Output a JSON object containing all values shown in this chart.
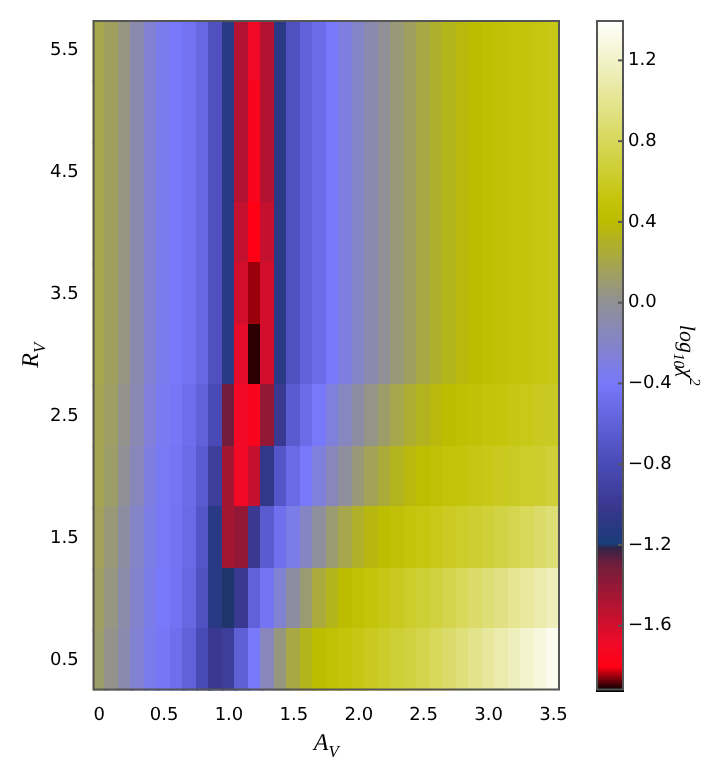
{
  "chart_data": {
    "type": "heatmap",
    "xlabel": "A$_{V}$",
    "ylabel": "R$_{V}$",
    "clabel": "log$_{10}$χ$^{2}$",
    "x": [
      0,
      0.1,
      0.2,
      0.3,
      0.4,
      0.5,
      0.6,
      0.7,
      0.8,
      0.9,
      1.0,
      1.1,
      1.2,
      1.3,
      1.4,
      1.5,
      1.6,
      1.7,
      1.8,
      1.9,
      2.0,
      2.1,
      2.2,
      2.3,
      2.4,
      2.5,
      2.6,
      2.7,
      2.8,
      2.9,
      3.0,
      3.1,
      3.2,
      3.3,
      3.4,
      3.5
    ],
    "y": [
      5.5,
      5.0,
      4.5,
      4.0,
      3.5,
      3.0,
      2.5,
      2.0,
      1.5,
      1.0,
      0.5
    ],
    "cells": [
      [
        0.2,
        0.15,
        0.05,
        -0.1,
        -0.25,
        -0.35,
        -0.4,
        -0.45,
        -0.55,
        -0.75,
        -1.1,
        -1.5,
        -1.7,
        -1.5,
        -1.1,
        -0.75,
        -0.6,
        -0.5,
        -0.4,
        -0.3,
        -0.2,
        -0.1,
        0.0,
        0.08,
        0.15,
        0.22,
        0.28,
        0.33,
        0.37,
        0.41,
        0.44,
        0.47,
        0.49,
        0.51,
        0.53,
        0.55
      ],
      [
        0.2,
        0.15,
        0.05,
        -0.1,
        -0.25,
        -0.35,
        -0.4,
        -0.45,
        -0.55,
        -0.75,
        -1.1,
        -1.5,
        -1.75,
        -1.5,
        -1.1,
        -0.75,
        -0.6,
        -0.5,
        -0.4,
        -0.3,
        -0.2,
        -0.1,
        0.0,
        0.08,
        0.15,
        0.22,
        0.28,
        0.33,
        0.37,
        0.41,
        0.44,
        0.47,
        0.49,
        0.51,
        0.53,
        0.55
      ],
      [
        0.2,
        0.15,
        0.05,
        -0.1,
        -0.25,
        -0.35,
        -0.4,
        -0.45,
        -0.55,
        -0.75,
        -1.1,
        -1.5,
        -1.75,
        -1.5,
        -1.1,
        -0.75,
        -0.6,
        -0.5,
        -0.4,
        -0.3,
        -0.2,
        -0.1,
        0.0,
        0.08,
        0.15,
        0.22,
        0.28,
        0.33,
        0.37,
        0.41,
        0.44,
        0.47,
        0.49,
        0.51,
        0.53,
        0.55
      ],
      [
        0.2,
        0.15,
        0.05,
        -0.1,
        -0.25,
        -0.35,
        -0.4,
        -0.45,
        -0.55,
        -0.75,
        -1.1,
        -1.55,
        -1.8,
        -1.55,
        -1.1,
        -0.75,
        -0.6,
        -0.5,
        -0.4,
        -0.3,
        -0.2,
        -0.1,
        0.0,
        0.08,
        0.15,
        0.22,
        0.28,
        0.33,
        0.37,
        0.41,
        0.44,
        0.47,
        0.49,
        0.51,
        0.53,
        0.55
      ],
      [
        0.2,
        0.15,
        0.05,
        -0.1,
        -0.25,
        -0.35,
        -0.4,
        -0.45,
        -0.55,
        -0.75,
        -1.1,
        -1.6,
        -1.85,
        -1.6,
        -1.1,
        -0.75,
        -0.6,
        -0.5,
        -0.4,
        -0.3,
        -0.2,
        -0.1,
        0.0,
        0.08,
        0.15,
        0.22,
        0.28,
        0.33,
        0.37,
        0.41,
        0.44,
        0.47,
        0.49,
        0.51,
        0.53,
        0.55
      ],
      [
        0.2,
        0.15,
        0.05,
        -0.1,
        -0.25,
        -0.35,
        -0.4,
        -0.45,
        -0.55,
        -0.75,
        -1.1,
        -1.65,
        -1.9,
        -1.6,
        -1.1,
        -0.75,
        -0.6,
        -0.5,
        -0.4,
        -0.3,
        -0.2,
        -0.1,
        0.0,
        0.08,
        0.15,
        0.22,
        0.28,
        0.33,
        0.37,
        0.41,
        0.44,
        0.47,
        0.49,
        0.51,
        0.53,
        0.55
      ],
      [
        0.18,
        0.13,
        0.03,
        -0.12,
        -0.27,
        -0.37,
        -0.42,
        -0.48,
        -0.6,
        -0.8,
        -1.3,
        -1.7,
        -1.75,
        -1.4,
        -1.0,
        -0.65,
        -0.5,
        -0.4,
        -0.28,
        -0.17,
        -0.06,
        0.04,
        0.12,
        0.2,
        0.27,
        0.32,
        0.37,
        0.41,
        0.44,
        0.47,
        0.5,
        0.52,
        0.54,
        0.56,
        0.58,
        0.6
      ],
      [
        0.18,
        0.12,
        0.0,
        -0.15,
        -0.3,
        -0.38,
        -0.43,
        -0.5,
        -0.65,
        -0.95,
        -1.45,
        -1.7,
        -1.55,
        -1.05,
        -0.7,
        -0.52,
        -0.4,
        -0.28,
        -0.15,
        -0.03,
        0.08,
        0.17,
        0.25,
        0.32,
        0.37,
        0.42,
        0.46,
        0.49,
        0.51,
        0.54,
        0.56,
        0.58,
        0.6,
        0.62,
        0.64,
        0.67
      ],
      [
        0.16,
        0.08,
        -0.05,
        -0.2,
        -0.32,
        -0.39,
        -0.44,
        -0.52,
        -0.7,
        -1.1,
        -1.45,
        -1.4,
        -1.0,
        -0.65,
        -0.47,
        -0.33,
        -0.18,
        -0.03,
        0.1,
        0.2,
        0.29,
        0.36,
        0.42,
        0.46,
        0.5,
        0.53,
        0.56,
        0.59,
        0.62,
        0.65,
        0.68,
        0.72,
        0.76,
        0.8,
        0.85,
        0.9
      ],
      [
        0.14,
        0.05,
        -0.08,
        -0.22,
        -0.33,
        -0.4,
        -0.45,
        -0.55,
        -0.75,
        -1.1,
        -1.2,
        -1.0,
        -0.6,
        -0.43,
        -0.24,
        -0.05,
        0.1,
        0.24,
        0.33,
        0.4,
        0.45,
        0.5,
        0.54,
        0.58,
        0.62,
        0.66,
        0.7,
        0.75,
        0.8,
        0.85,
        0.9,
        0.95,
        1.0,
        1.05,
        1.1,
        1.15
      ],
      [
        0.12,
        0.03,
        -0.1,
        -0.24,
        -0.35,
        -0.42,
        -0.48,
        -0.6,
        -0.8,
        -1.0,
        -0.95,
        -0.62,
        -0.4,
        -0.15,
        0.06,
        0.22,
        0.33,
        0.4,
        0.45,
        0.5,
        0.54,
        0.58,
        0.62,
        0.66,
        0.7,
        0.75,
        0.8,
        0.86,
        0.92,
        0.98,
        1.04,
        1.1,
        1.16,
        1.22,
        1.28,
        1.34
      ]
    ],
    "xlim": [
      -0.05,
      3.55
    ],
    "ylim": [
      0.25,
      5.75
    ],
    "xticks": [
      0,
      0.5,
      {
        "value": 1,
        "label": "1.0"
      },
      1.5,
      {
        "value": 2,
        "label": "2.0"
      },
      2.5,
      {
        "value": 3,
        "label": "3.0"
      },
      3.5
    ],
    "yticks": [
      0.5,
      1.5,
      2.5,
      3.5,
      4.5,
      5.5
    ],
    "clim": [
      -1.92,
      1.4
    ],
    "cticks": [
      {
        "value": -1.6,
        "label": "−1.6"
      },
      {
        "value": -1.2,
        "label": "−1.2"
      },
      {
        "value": -0.8,
        "label": "−0.8"
      },
      {
        "value": -0.4,
        "label": "−0.4"
      },
      {
        "value": 0,
        "label": "0.0"
      },
      0.4,
      0.8,
      1.2
    ],
    "grid": false
  }
}
